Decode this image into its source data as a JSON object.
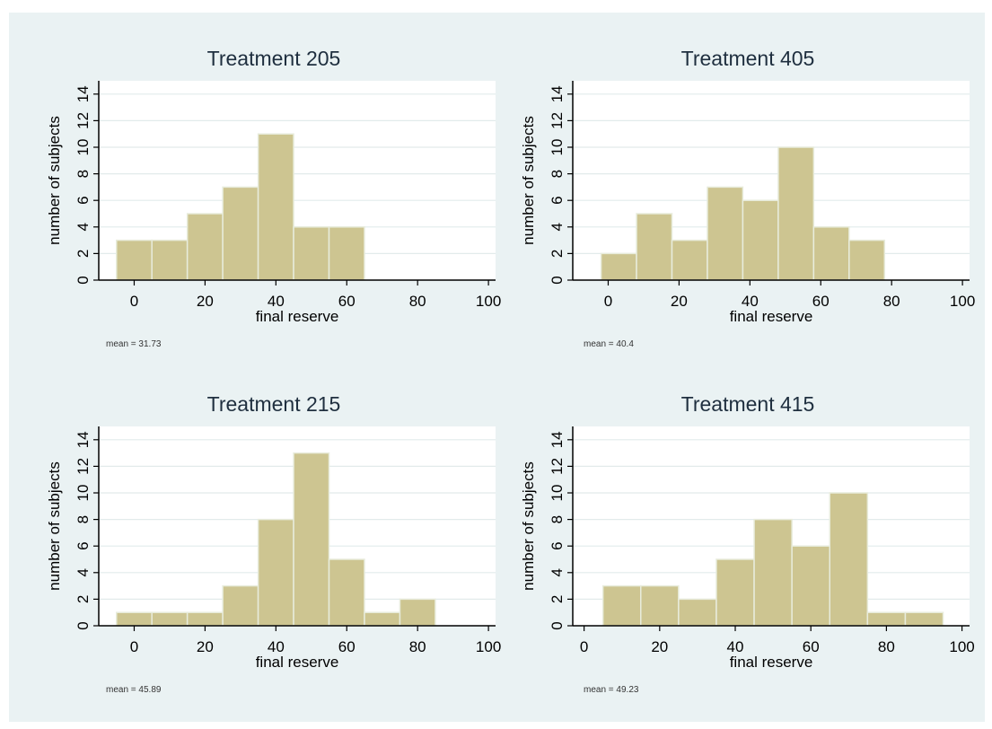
{
  "colors": {
    "bar_fill": "#cdc591",
    "bar_stroke": "#e8ecdc",
    "panel_bg": "#eaf2f3",
    "plot_bg": "#ffffff",
    "grid": "#e2ebeb",
    "axis": "#000000",
    "title": "#1f2f3f"
  },
  "chart_data": [
    {
      "type": "bar",
      "title": "Treatment 205",
      "xlabel": "final reserve",
      "ylabel": "number of subjects",
      "xlim": [
        -10,
        102
      ],
      "ylim": [
        0,
        15
      ],
      "xticks": [
        0,
        20,
        40,
        60,
        80,
        100
      ],
      "yticks": [
        0,
        2,
        4,
        6,
        8,
        10,
        12,
        14
      ],
      "grid": true,
      "bins": [
        [
          -5,
          5
        ],
        [
          5,
          15
        ],
        [
          15,
          25
        ],
        [
          25,
          35
        ],
        [
          35,
          45
        ],
        [
          45,
          55
        ],
        [
          55,
          65
        ]
      ],
      "values": [
        3,
        3,
        5,
        7,
        11,
        4,
        4
      ],
      "note": "mean = 31.73"
    },
    {
      "type": "bar",
      "title": "Treatment 405",
      "xlabel": "final reserve",
      "ylabel": "number of subjects",
      "xlim": [
        -10,
        102
      ],
      "ylim": [
        0,
        15
      ],
      "xticks": [
        0,
        20,
        40,
        60,
        80,
        100
      ],
      "yticks": [
        0,
        2,
        4,
        6,
        8,
        10,
        12,
        14
      ],
      "grid": true,
      "bins": [
        [
          -2,
          8
        ],
        [
          8,
          18
        ],
        [
          18,
          28
        ],
        [
          28,
          38
        ],
        [
          38,
          48
        ],
        [
          48,
          58
        ],
        [
          58,
          68
        ],
        [
          68,
          78
        ]
      ],
      "values": [
        2,
        5,
        3,
        7,
        6,
        10,
        4,
        3
      ],
      "note": "mean = 40.4"
    },
    {
      "type": "bar",
      "title": "Treatment 215",
      "xlabel": "final reserve",
      "ylabel": "number of subjects",
      "xlim": [
        -10,
        102
      ],
      "ylim": [
        0,
        15
      ],
      "xticks": [
        0,
        20,
        40,
        60,
        80,
        100
      ],
      "yticks": [
        0,
        2,
        4,
        6,
        8,
        10,
        12,
        14
      ],
      "grid": true,
      "bins": [
        [
          -5,
          5
        ],
        [
          5,
          15
        ],
        [
          15,
          25
        ],
        [
          25,
          35
        ],
        [
          35,
          45
        ],
        [
          45,
          55
        ],
        [
          55,
          65
        ],
        [
          65,
          75
        ],
        [
          75,
          85
        ]
      ],
      "values": [
        1,
        1,
        1,
        3,
        8,
        13,
        5,
        1,
        2
      ],
      "note": "mean = 45.89"
    },
    {
      "type": "bar",
      "title": "Treatment 415",
      "xlabel": "final reserve",
      "ylabel": "number of subjects",
      "xlim": [
        -3,
        102
      ],
      "ylim": [
        0,
        15
      ],
      "xticks": [
        0,
        20,
        40,
        60,
        80,
        100
      ],
      "yticks": [
        0,
        2,
        4,
        6,
        8,
        10,
        12,
        14
      ],
      "grid": true,
      "bins": [
        [
          5,
          15
        ],
        [
          15,
          25
        ],
        [
          25,
          35
        ],
        [
          35,
          45
        ],
        [
          45,
          55
        ],
        [
          55,
          65
        ],
        [
          65,
          75
        ],
        [
          75,
          85
        ],
        [
          85,
          95
        ]
      ],
      "values": [
        3,
        3,
        2,
        5,
        8,
        6,
        10,
        1,
        1
      ],
      "note": "mean = 49.23"
    }
  ]
}
